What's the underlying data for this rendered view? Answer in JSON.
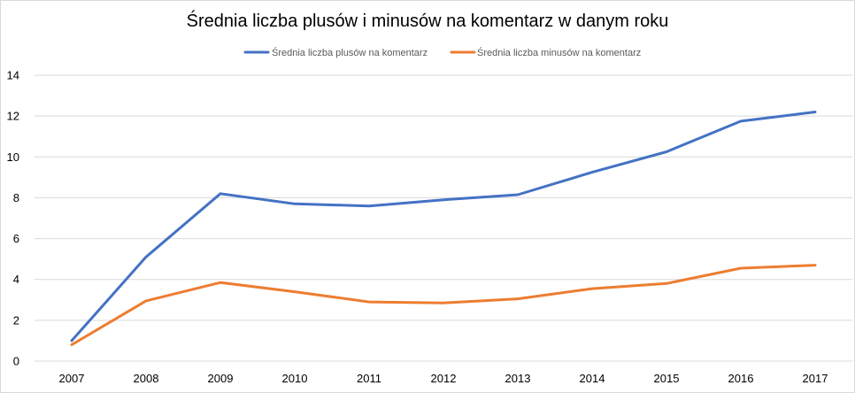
{
  "chart_data": {
    "type": "line",
    "title": "Średnia liczba plusów i minusów na komentarz w danym roku",
    "xlabel": "",
    "ylabel": "",
    "categories": [
      "2007",
      "2008",
      "2009",
      "2010",
      "2011",
      "2012",
      "2013",
      "2014",
      "2015",
      "2016",
      "2017"
    ],
    "ylim": [
      0,
      14
    ],
    "yticks": [
      "0",
      "2",
      "4",
      "6",
      "8",
      "10",
      "12",
      "14"
    ],
    "grid": true,
    "legend": "top",
    "series": [
      {
        "name": "Średnia liczba plusów na komentarz",
        "color": "#4472C4",
        "values": [
          1.0,
          5.1,
          8.2,
          7.7,
          7.6,
          7.9,
          8.15,
          9.25,
          10.25,
          11.75,
          12.2
        ]
      },
      {
        "name": "Średnia liczba minusów na komentarz",
        "color": "#ED7D31",
        "values": [
          0.8,
          2.95,
          3.85,
          3.4,
          2.9,
          2.85,
          3.05,
          3.55,
          3.8,
          4.55,
          4.7
        ]
      }
    ]
  }
}
